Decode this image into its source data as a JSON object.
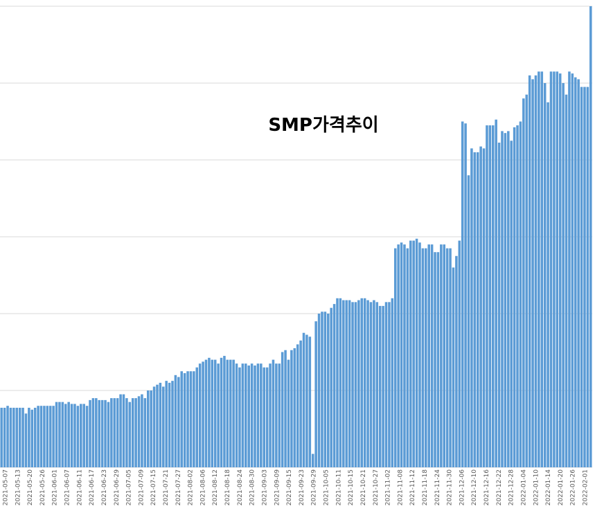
{
  "chart_data": {
    "type": "bar",
    "title": "SMP가격추이",
    "xlabel": "",
    "ylabel": "",
    "ylim": [
      0,
      120
    ],
    "grid": true,
    "color": "#5b9bd5",
    "tick_labels": [
      "2021-05-07",
      "2021-05-13",
      "2021-05-20",
      "2021-05-26",
      "2021-06-01",
      "2021-06-07",
      "2021-06-11",
      "2021-06-17",
      "2021-06-23",
      "2021-06-29",
      "2021-07-05",
      "2021-07-09",
      "2021-07-15",
      "2021-07-21",
      "2021-07-27",
      "2021-08-02",
      "2021-08-06",
      "2021-08-12",
      "2021-08-18",
      "2021-08-24",
      "2021-08-30",
      "2021-09-03",
      "2021-09-09",
      "2021-09-15",
      "2021-09-23",
      "2021-09-29",
      "2021-10-05",
      "2021-10-11",
      "2021-10-15",
      "2021-10-21",
      "2021-10-27",
      "2021-11-02",
      "2021-11-08",
      "2021-11-12",
      "2021-11-18",
      "2021-11-24",
      "2021-11-30",
      "2021-12-06",
      "2021-12-10",
      "2021-12-16",
      "2021-12-22",
      "2021-12-28",
      "2022-01-04",
      "2022-01-10",
      "2022-01-14",
      "2022-01-20",
      "2022-01-26",
      "2022-02-01"
    ],
    "values": [
      15.5,
      15.5,
      16,
      15.5,
      15.5,
      15.5,
      15.5,
      15.5,
      14,
      15.5,
      15,
      15.5,
      16,
      16,
      16,
      16,
      16,
      16,
      17,
      17,
      17,
      16.5,
      17,
      16.5,
      16.5,
      16,
      16.5,
      16.5,
      16,
      17.5,
      18,
      18,
      17.5,
      17.5,
      17.5,
      17,
      18,
      18,
      18,
      19,
      19,
      18,
      17,
      18,
      18,
      18.5,
      19,
      18,
      20,
      20,
      21,
      21.5,
      22,
      21,
      22.5,
      22,
      22.5,
      24,
      23.5,
      25,
      24.5,
      25,
      25,
      25,
      26,
      27,
      27.5,
      28,
      28.5,
      28,
      28,
      27,
      28.5,
      29,
      28,
      28,
      28,
      27,
      26,
      27,
      27,
      26.5,
      27,
      26.5,
      27,
      27,
      26,
      26,
      27,
      28,
      27,
      27,
      30,
      30.5,
      28,
      30.5,
      31,
      32,
      33,
      35,
      34.5,
      34,
      3.5,
      38,
      40,
      40.5,
      40.5,
      40,
      41.5,
      42.5,
      44,
      44,
      43.5,
      43.5,
      43.5,
      43,
      43,
      43.5,
      44,
      44,
      43.5,
      43,
      43.5,
      43,
      42,
      42,
      43,
      43,
      44,
      57,
      58,
      58.5,
      58,
      57,
      59,
      59,
      59.5,
      58.5,
      57,
      57,
      58,
      58,
      56,
      56,
      58,
      58,
      57,
      57,
      52,
      55,
      59,
      90,
      89.5,
      76,
      83,
      82,
      82,
      83.5,
      83,
      89,
      89,
      89,
      90.5,
      84.5,
      87.5,
      87,
      87.5,
      85,
      88.5,
      89,
      90,
      96,
      97,
      102,
      101,
      102,
      103,
      103,
      100,
      95,
      103,
      103,
      103,
      102.5,
      100,
      97,
      103,
      102.5,
      101.5,
      101,
      99,
      99,
      99,
      120
    ]
  }
}
